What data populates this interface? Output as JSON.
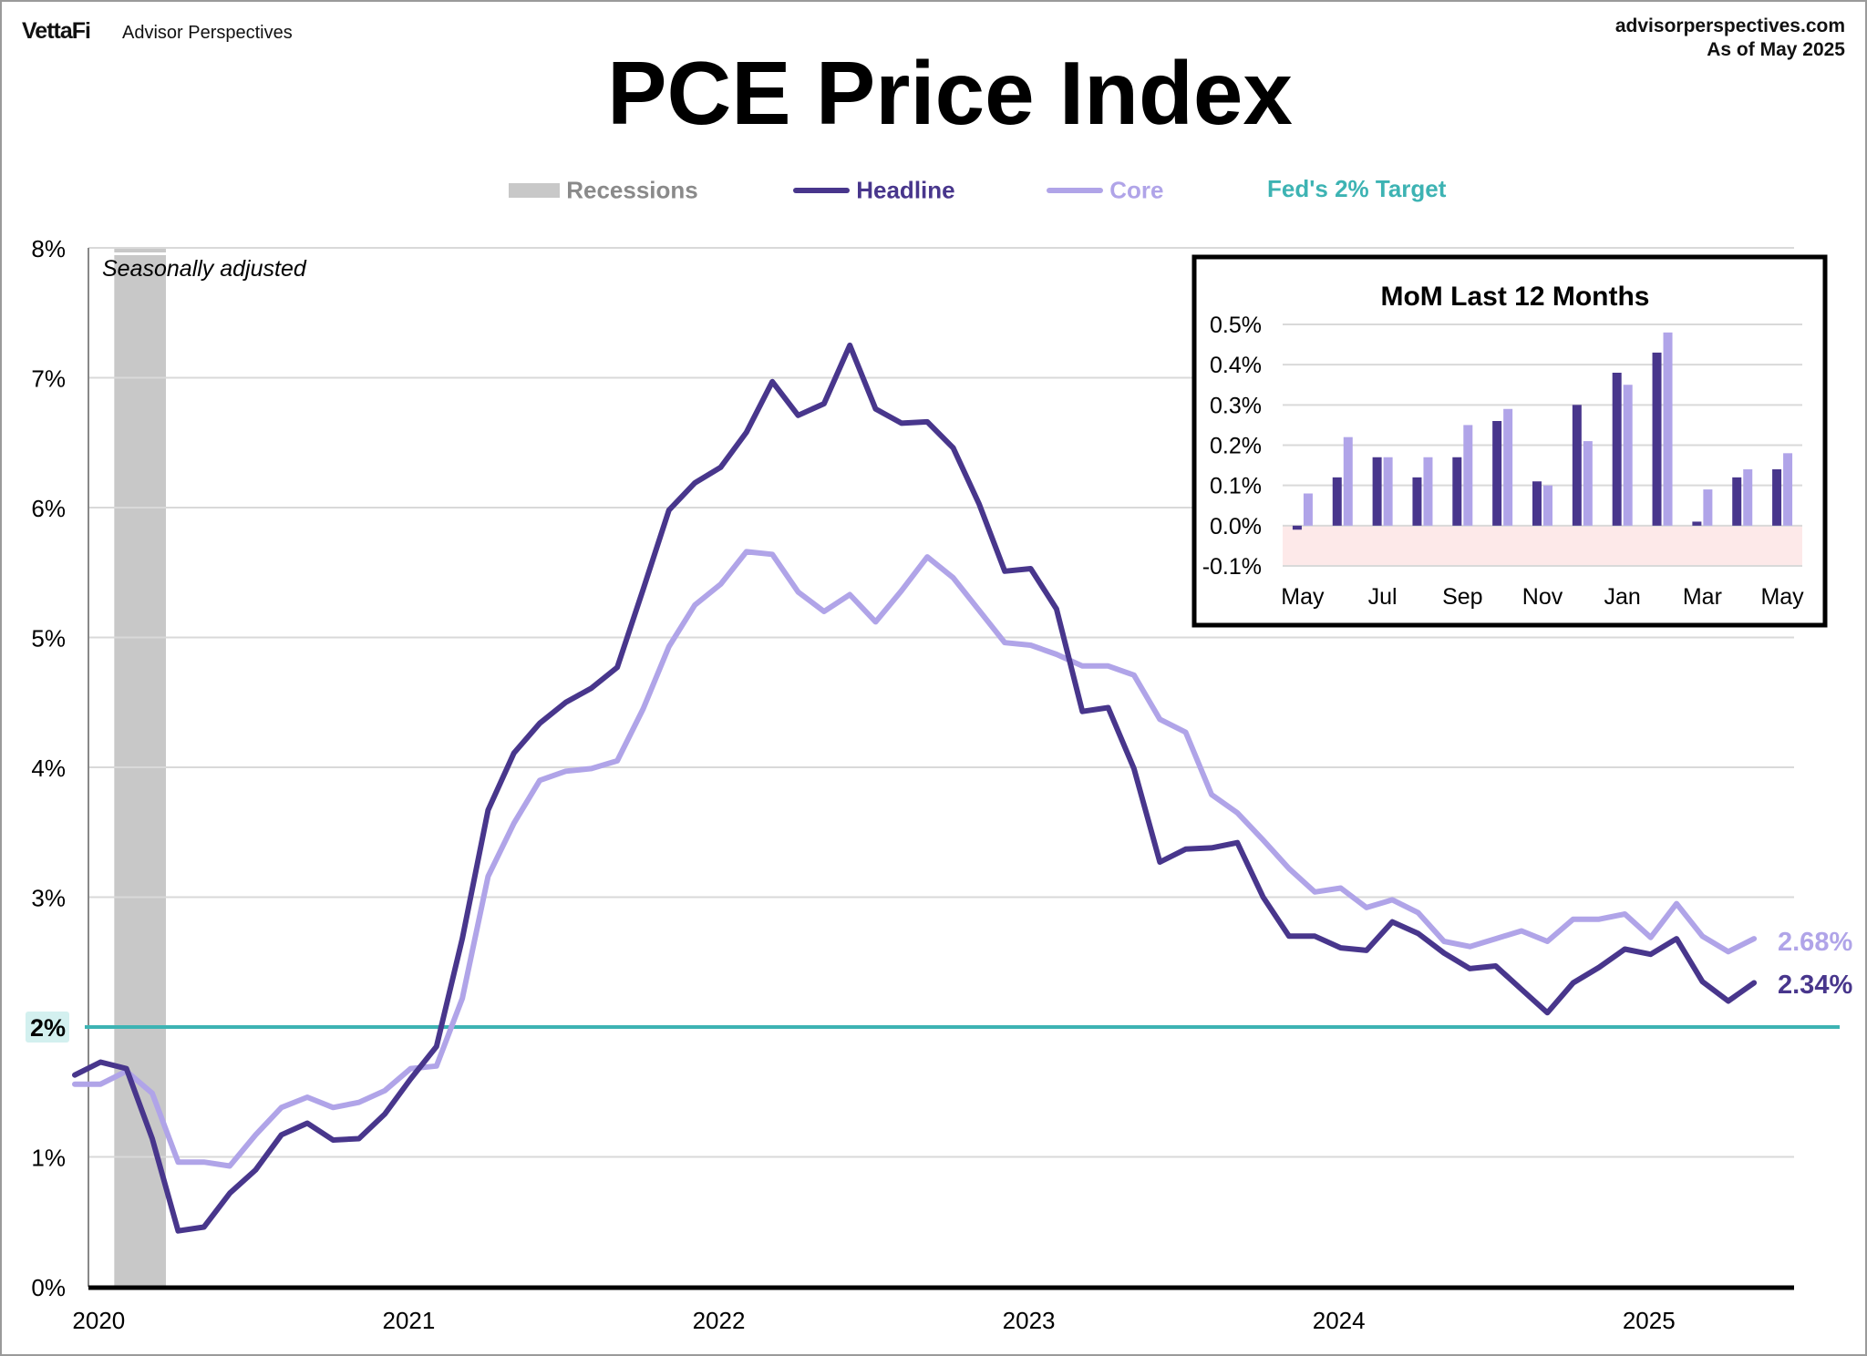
{
  "header": {
    "logo": "VettaFi",
    "logo_sub": "Advisor Perspectives",
    "site": "advisorperspectives.com",
    "as_of": "As of May 2025"
  },
  "colors": {
    "headline": "#48368c",
    "core": "#b0a4e8",
    "target": "#3db3b3",
    "recession": "#c8c8c8",
    "negative_band": "#fde9e9"
  },
  "chart_data": [
    {
      "type": "line",
      "title": "PCE Price Index",
      "annotation": "Seasonally adjusted",
      "legend": [
        "Recessions",
        "Headline",
        "Core",
        "Fed's 2% Target"
      ],
      "legend_placement": "top",
      "x_start": "2019-12",
      "x_frequency": "monthly",
      "x_ticks": [
        "2020",
        "2021",
        "2022",
        "2023",
        "2024",
        "2025"
      ],
      "y_ticks": [
        "0%",
        "1%",
        "2%",
        "3%",
        "4%",
        "5%",
        "6%",
        "7%",
        "8%"
      ],
      "ylim": [
        0,
        8
      ],
      "grid": true,
      "target": {
        "value": 2,
        "label": "2%"
      },
      "recessions": [
        {
          "start": "2020-02",
          "end": "2020-04"
        }
      ],
      "series": [
        {
          "name": "Headline",
          "end_label": "2.34%",
          "values": [
            1.63,
            1.73,
            1.68,
            1.14,
            0.43,
            0.46,
            0.72,
            0.9,
            1.17,
            1.26,
            1.13,
            1.14,
            1.33,
            1.6,
            1.85,
            2.68,
            3.67,
            4.11,
            4.34,
            4.5,
            4.61,
            4.77,
            5.37,
            5.98,
            6.19,
            6.31,
            6.58,
            6.97,
            6.71,
            6.8,
            7.25,
            6.76,
            6.65,
            6.66,
            6.46,
            6.03,
            5.51,
            5.53,
            5.22,
            4.43,
            4.46,
            3.99,
            3.27,
            3.37,
            3.38,
            3.42,
            3.0,
            2.7,
            2.7,
            2.61,
            2.59,
            2.81,
            2.72,
            2.57,
            2.45,
            2.47,
            2.29,
            2.11,
            2.34,
            2.46,
            2.6,
            2.56,
            2.68,
            2.35,
            2.2,
            2.34
          ]
        },
        {
          "name": "Core",
          "end_label": "2.68%",
          "values": [
            1.56,
            1.56,
            1.66,
            1.49,
            0.96,
            0.96,
            0.93,
            1.17,
            1.38,
            1.46,
            1.38,
            1.42,
            1.51,
            1.68,
            1.7,
            2.22,
            3.16,
            3.57,
            3.9,
            3.97,
            3.99,
            4.05,
            4.45,
            4.93,
            5.25,
            5.41,
            5.66,
            5.64,
            5.35,
            5.2,
            5.33,
            5.12,
            5.36,
            5.62,
            5.46,
            5.21,
            4.96,
            4.94,
            4.87,
            4.78,
            4.78,
            4.71,
            4.37,
            4.27,
            3.79,
            3.65,
            3.44,
            3.22,
            3.04,
            3.07,
            2.92,
            2.98,
            2.88,
            2.66,
            2.62,
            2.68,
            2.74,
            2.66,
            2.83,
            2.83,
            2.87,
            2.69,
            2.95,
            2.7,
            2.58,
            2.68
          ]
        }
      ]
    },
    {
      "type": "bar",
      "title": "MoM Last 12 Months",
      "categories": [
        "May",
        "Jun",
        "Jul",
        "Aug",
        "Sep",
        "Oct",
        "Nov",
        "Dec",
        "Jan",
        "Feb",
        "Mar",
        "Apr",
        "May"
      ],
      "x_tick_labels": [
        "May",
        "Jul",
        "Sep",
        "Nov",
        "Jan",
        "Mar",
        "May"
      ],
      "y_ticks": [
        "-0.1%",
        "0.0%",
        "0.1%",
        "0.2%",
        "0.3%",
        "0.4%",
        "0.5%"
      ],
      "ylim": [
        -0.1,
        0.5
      ],
      "grid": true,
      "series": [
        {
          "name": "Headline",
          "values": [
            -0.01,
            0.12,
            0.17,
            0.12,
            0.17,
            0.26,
            0.11,
            0.3,
            0.38,
            0.43,
            0.01,
            0.12,
            0.14
          ]
        },
        {
          "name": "Core",
          "values": [
            0.08,
            0.22,
            0.17,
            0.17,
            0.25,
            0.29,
            0.1,
            0.21,
            0.35,
            0.48,
            0.09,
            0.14,
            0.18
          ]
        }
      ]
    }
  ]
}
